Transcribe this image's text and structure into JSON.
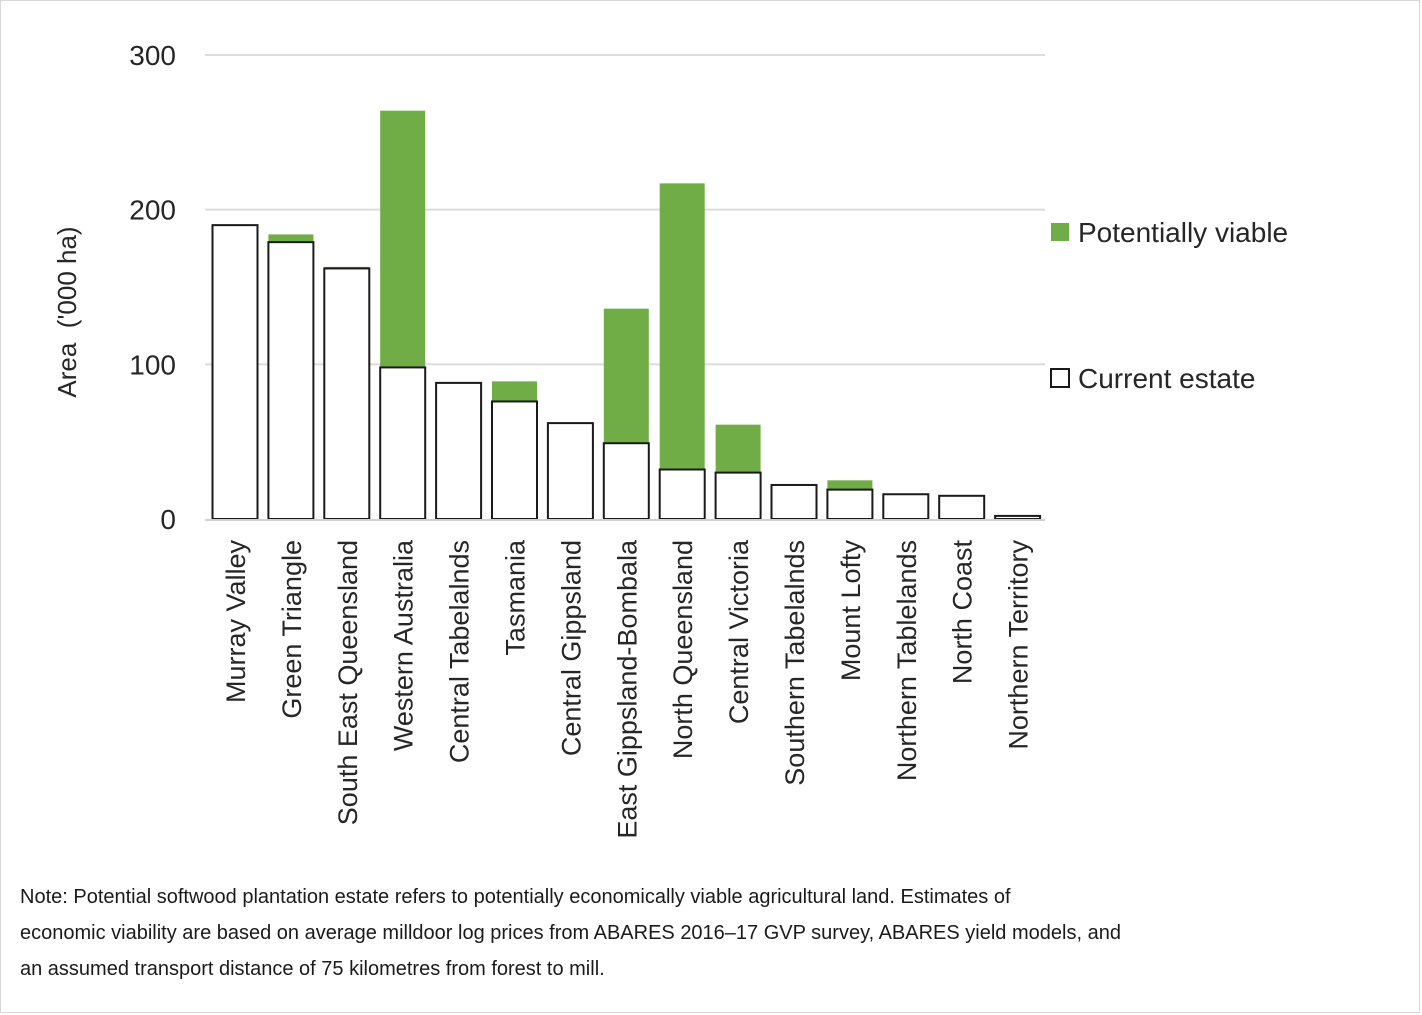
{
  "chart_data": {
    "type": "bar",
    "stacked": true,
    "title": "",
    "xlabel": "",
    "ylabel": "Area  ('000 ha)",
    "ylim": [
      0,
      300
    ],
    "yticks": [
      0,
      100,
      200,
      300
    ],
    "grid": true,
    "legend_position": "right",
    "categories": [
      "Murray Valley",
      "Green Triangle",
      "South East Queensland",
      "Western Australia",
      "Central Tabelalnds",
      "Tasmania",
      "Central Gippsland",
      "East Gippsland-Bombala",
      "North Queensland",
      "Central Victoria",
      "Southern Tabelalnds",
      "Mount Lofty",
      "Northern Tablelands",
      "North Coast",
      "Northern Territory"
    ],
    "series": [
      {
        "name": "Current estate",
        "color": "#ffffff",
        "values": [
          190,
          179,
          162,
          98,
          88,
          76,
          62,
          49,
          32,
          30,
          22,
          19,
          16,
          15,
          2
        ]
      },
      {
        "name": "Potentially viable",
        "color": "#70ad47",
        "values": [
          0,
          5,
          1,
          166,
          0,
          13,
          0,
          87,
          185,
          31,
          0,
          6,
          0,
          0,
          0
        ]
      }
    ],
    "legend_order": [
      "Potentially viable",
      "Current estate"
    ]
  },
  "note": {
    "lines": [
      "Note: Potential softwood plantation estate refers to potentially economically viable agricultural land. Estimates of",
      "economic viability are based on average milldoor log prices from ABARES 2016–17 GVP survey, ABARES yield models, and",
      "an assumed transport distance of 75 kilometres from forest to mill."
    ]
  }
}
